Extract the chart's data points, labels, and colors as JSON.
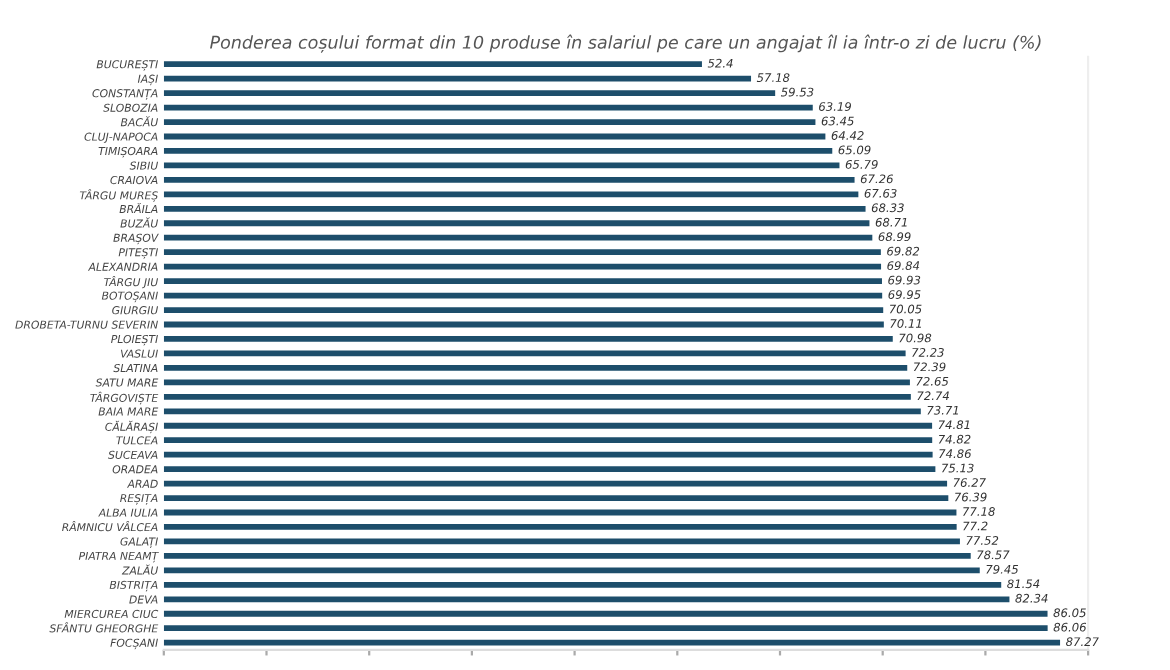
{
  "chart_data": {
    "type": "bar",
    "orientation": "horizontal",
    "title": "Ponderea coșului format din 10 produse în salariul pe care un angajat îl ia într-o zi de lucru (%)",
    "categories": [
      "BUCUREȘTI",
      "IAȘI",
      "CONSTANȚA",
      "SLOBOZIA",
      "BACĂU",
      "CLUJ-NAPOCA",
      "TIMIȘOARA",
      "SIBIU",
      "CRAIOVA",
      "TÂRGU MUREȘ",
      "BRĂILA",
      "BUZĂU",
      "BRAȘOV",
      "PITEȘTI",
      "ALEXANDRIA",
      "TÂRGU JIU",
      "BOTOȘANI",
      "GIURGIU",
      "DROBETA-TURNU SEVERIN",
      "PLOIEȘTI",
      "VASLUI",
      "SLATINA",
      "SATU MARE",
      "TÂRGOVIȘTE",
      "BAIA MARE",
      "CĂLĂRAȘI",
      "TULCEA",
      "SUCEAVA",
      "ORADEA",
      "ARAD",
      "REȘIȚA",
      "ALBA IULIA",
      "RÂMNICU VÂLCEA",
      "GALAȚI",
      "PIATRA NEAMȚ",
      "ZALĂU",
      "BISTRIȚA",
      "DEVA",
      "MIERCUREA CIUC",
      "SFÂNTU GHEORGHE",
      "FOCȘANI"
    ],
    "values": [
      52.4,
      57.18,
      59.53,
      63.19,
      63.45,
      64.42,
      65.09,
      65.79,
      67.26,
      67.63,
      68.33,
      68.71,
      68.99,
      69.82,
      69.84,
      69.93,
      69.95,
      70.05,
      70.11,
      70.98,
      72.23,
      72.39,
      72.65,
      72.74,
      73.71,
      74.81,
      74.82,
      74.86,
      75.13,
      76.27,
      76.39,
      77.18,
      77.2,
      77.52,
      78.57,
      79.45,
      81.54,
      82.34,
      86.05,
      86.06,
      87.27
    ],
    "color": "#1d4e6b",
    "xlim": [
      0,
      90
    ],
    "xticks": [
      {
        "value": 0,
        "label": null
      },
      {
        "value": 10,
        "label": null
      },
      {
        "value": 20,
        "label": null
      },
      {
        "value": 30,
        "label": null
      },
      {
        "value": 40,
        "label": null
      },
      {
        "value": 50,
        "label": null
      },
      {
        "value": 60,
        "label": null
      },
      {
        "value": 70,
        "label": null
      },
      {
        "value": 80,
        "label": null
      },
      {
        "value": 90,
        "label": null
      }
    ],
    "data_labels": true,
    "grid": false,
    "legend": false
  }
}
